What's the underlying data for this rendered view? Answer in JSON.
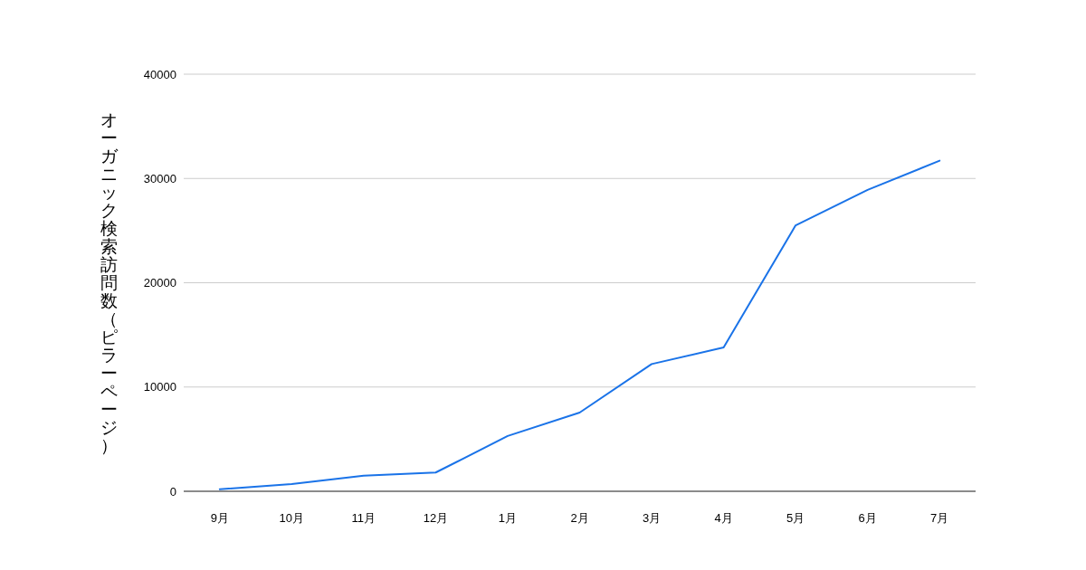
{
  "chart_data": {
    "type": "line",
    "ylabel": "オーガニック検索訪問数（ピラーページ）",
    "categories": [
      "9月",
      "10月",
      "11月",
      "12月",
      "1月",
      "2月",
      "3月",
      "4月",
      "5月",
      "6月",
      "7月"
    ],
    "series": [
      {
        "color": "#1a73e8",
        "values": [
          200,
          700,
          1500,
          1800,
          5300,
          7550,
          12200,
          13800,
          25500,
          28900,
          31700
        ]
      }
    ],
    "ylim": [
      0,
      40000
    ],
    "yticks": [
      0,
      10000,
      20000,
      30000,
      40000
    ],
    "grid": "y",
    "marker": "none",
    "line_style": "solid"
  }
}
